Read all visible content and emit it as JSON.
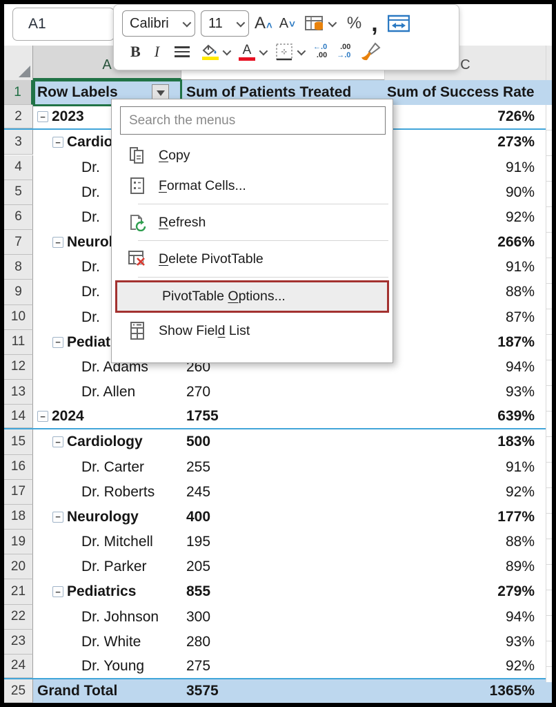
{
  "name_box": "A1",
  "columns": {
    "a": "A",
    "c": "C"
  },
  "mini_toolbar": {
    "font_name": "Calibri",
    "font_size": "11",
    "grow_font": "A",
    "grow_caret": "^",
    "shrink_font": "A",
    "shrink_caret": "v",
    "percent": "%",
    "comma": ",",
    "bold": "B",
    "italic": "I",
    "font_color_glyph": "A",
    "increase_decimal_top": "←.0",
    "increase_decimal_bottom": ".00",
    "decrease_decimal_top": ".00",
    "decrease_decimal_bottom": "→.0"
  },
  "grid": {
    "headers": [
      "Row Labels",
      "Sum of Patients Treated",
      "Sum of Success Rate"
    ],
    "rows": [
      {
        "n": 2,
        "label": "2023",
        "level": 0,
        "collapse": true,
        "bold": true,
        "patients": "",
        "success": "726%",
        "blue_bottom": true
      },
      {
        "n": 3,
        "label": "Cardiology",
        "level": 1,
        "collapse": true,
        "bold": true,
        "patients": "",
        "success": "273%"
      },
      {
        "n": 4,
        "label": "Dr.",
        "level": 2,
        "collapse": false,
        "bold": false,
        "patients": "",
        "success": "91%"
      },
      {
        "n": 5,
        "label": "Dr.",
        "level": 2,
        "collapse": false,
        "bold": false,
        "patients": "",
        "success": "90%"
      },
      {
        "n": 6,
        "label": "Dr.",
        "level": 2,
        "collapse": false,
        "bold": false,
        "patients": "",
        "success": "92%"
      },
      {
        "n": 7,
        "label": "Neurology",
        "level": 1,
        "collapse": true,
        "bold": true,
        "patients": "",
        "success": "266%"
      },
      {
        "n": 8,
        "label": "Dr.",
        "level": 2,
        "collapse": false,
        "bold": false,
        "patients": "",
        "success": "91%"
      },
      {
        "n": 9,
        "label": "Dr.",
        "level": 2,
        "collapse": false,
        "bold": false,
        "patients": "",
        "success": "88%"
      },
      {
        "n": 10,
        "label": "Dr.",
        "level": 2,
        "collapse": false,
        "bold": false,
        "patients": "",
        "success": "87%"
      },
      {
        "n": 11,
        "label": "Pediatrics",
        "level": 1,
        "collapse": true,
        "bold": true,
        "patients": "",
        "success": "187%"
      },
      {
        "n": 12,
        "label": "Dr. Adams",
        "level": 2,
        "collapse": false,
        "bold": false,
        "patients": "260",
        "success": "94%"
      },
      {
        "n": 13,
        "label": "Dr. Allen",
        "level": 2,
        "collapse": false,
        "bold": false,
        "patients": "270",
        "success": "93%"
      },
      {
        "n": 14,
        "label": "2024",
        "level": 0,
        "collapse": true,
        "bold": true,
        "patients": "1755",
        "success": "639%",
        "blue_bottom": true
      },
      {
        "n": 15,
        "label": "Cardiology",
        "level": 1,
        "collapse": true,
        "bold": true,
        "patients": "500",
        "success": "183%"
      },
      {
        "n": 16,
        "label": "Dr. Carter",
        "level": 2,
        "collapse": false,
        "bold": false,
        "patients": "255",
        "success": "91%"
      },
      {
        "n": 17,
        "label": "Dr. Roberts",
        "level": 2,
        "collapse": false,
        "bold": false,
        "patients": "245",
        "success": "92%"
      },
      {
        "n": 18,
        "label": "Neurology",
        "level": 1,
        "collapse": true,
        "bold": true,
        "patients": "400",
        "success": "177%"
      },
      {
        "n": 19,
        "label": "Dr. Mitchell",
        "level": 2,
        "collapse": false,
        "bold": false,
        "patients": "195",
        "success": "88%"
      },
      {
        "n": 20,
        "label": "Dr. Parker",
        "level": 2,
        "collapse": false,
        "bold": false,
        "patients": "205",
        "success": "89%"
      },
      {
        "n": 21,
        "label": "Pediatrics",
        "level": 1,
        "collapse": true,
        "bold": true,
        "patients": "855",
        "success": "279%"
      },
      {
        "n": 22,
        "label": "Dr. Johnson",
        "level": 2,
        "collapse": false,
        "bold": false,
        "patients": "300",
        "success": "94%"
      },
      {
        "n": 23,
        "label": "Dr. White",
        "level": 2,
        "collapse": false,
        "bold": false,
        "patients": "280",
        "success": "93%"
      },
      {
        "n": 24,
        "label": "Dr. Young",
        "level": 2,
        "collapse": false,
        "bold": false,
        "patients": "275",
        "success": "92%",
        "blue_bottom": true
      },
      {
        "n": 25,
        "label": "Grand Total",
        "level": 0,
        "collapse": false,
        "bold": true,
        "patients": "3575",
        "success": "1365%",
        "blue_bottom": true,
        "band": true
      }
    ],
    "header_row_number": "1",
    "collapse_glyph": "−"
  },
  "context_menu": {
    "search_placeholder": "Search the menus",
    "items": [
      {
        "icon": "copy-icon",
        "pre": "",
        "key": "C",
        "post": "opy"
      },
      {
        "icon": "format-cells-icon",
        "pre": "",
        "key": "F",
        "post": "ormat Cells..."
      },
      {
        "type": "separator"
      },
      {
        "icon": "refresh-icon",
        "pre": "",
        "key": "R",
        "post": "efresh"
      },
      {
        "type": "separator"
      },
      {
        "icon": "delete-pivottable-icon",
        "pre": "",
        "key": "D",
        "post": "elete PivotTable"
      },
      {
        "type": "separator"
      },
      {
        "icon": "",
        "pre": "PivotTable ",
        "key": "O",
        "post": "ptions...",
        "highlighted": true
      },
      {
        "icon": "show-field-list-icon",
        "pre": "Show Fiel",
        "key": "d",
        "post": " List"
      }
    ]
  },
  "colors": {
    "selection_green": "#217346",
    "header_band_blue": "#bdd7ee",
    "pivot_border_blue": "#41a5d9",
    "highlight_red": "#a33230",
    "fill_color_yellow": "#ffe900",
    "font_color_red": "#e81123"
  }
}
